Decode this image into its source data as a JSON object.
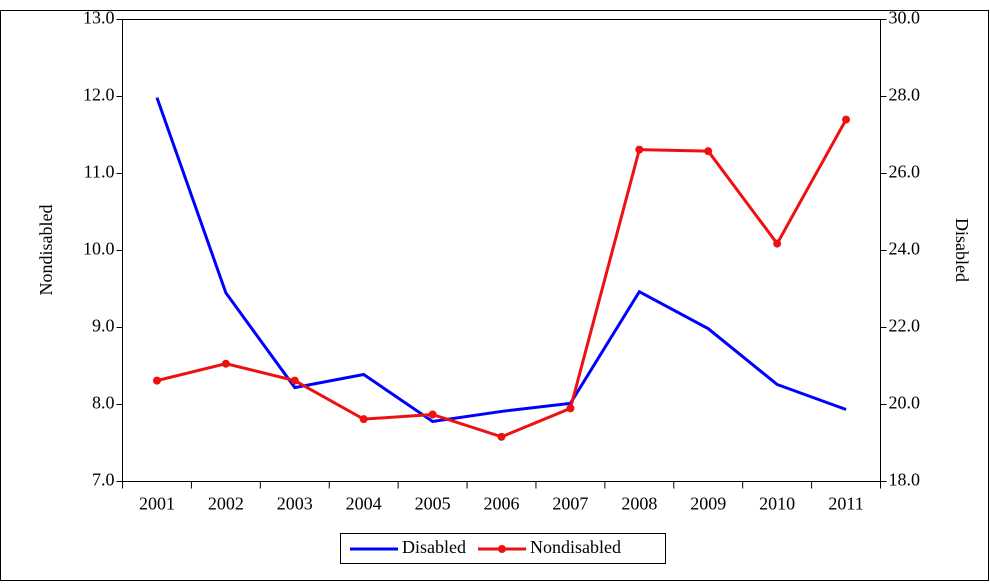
{
  "chart_data": {
    "type": "line",
    "categories": [
      "2001",
      "2002",
      "2003",
      "2004",
      "2005",
      "2006",
      "2007",
      "2008",
      "2009",
      "2010",
      "2011"
    ],
    "series": [
      {
        "name": "Disabled",
        "color": "#0000ff",
        "axis": "y2",
        "values": [
          27.97,
          22.9,
          20.44,
          20.78,
          19.56,
          19.82,
          20.03,
          22.93,
          21.97,
          20.52,
          19.87
        ]
      },
      {
        "name": "Nondisabled",
        "color": "#ee1111",
        "marker": true,
        "values": [
          8.31,
          8.53,
          8.31,
          7.81,
          7.87,
          7.58,
          7.95,
          11.31,
          11.29,
          10.09,
          11.7
        ]
      }
    ],
    "ylabel": "Nondisabled",
    "y2label": "Disabled",
    "ylim": [
      7,
      13
    ],
    "yticks": [
      {
        "value": 7,
        "label": "7.0"
      },
      {
        "value": 8,
        "label": "8.0"
      },
      {
        "value": 9,
        "label": "9.0"
      },
      {
        "value": 10,
        "label": "10.0"
      },
      {
        "value": 11,
        "label": "11.0"
      },
      {
        "value": 12,
        "label": "12.0"
      },
      {
        "value": 13,
        "label": "13.0"
      }
    ],
    "y2lim": [
      18,
      30
    ],
    "y2ticks": [
      {
        "value": 18,
        "label": "18.0"
      },
      {
        "value": 20,
        "label": "20.0"
      },
      {
        "value": 22,
        "label": "22.0"
      },
      {
        "value": 24,
        "label": "24.0"
      },
      {
        "value": 26,
        "label": "26.0"
      },
      {
        "value": 28,
        "label": "28.0"
      },
      {
        "value": 30,
        "label": "30.0"
      }
    ],
    "legend": "bottom"
  }
}
